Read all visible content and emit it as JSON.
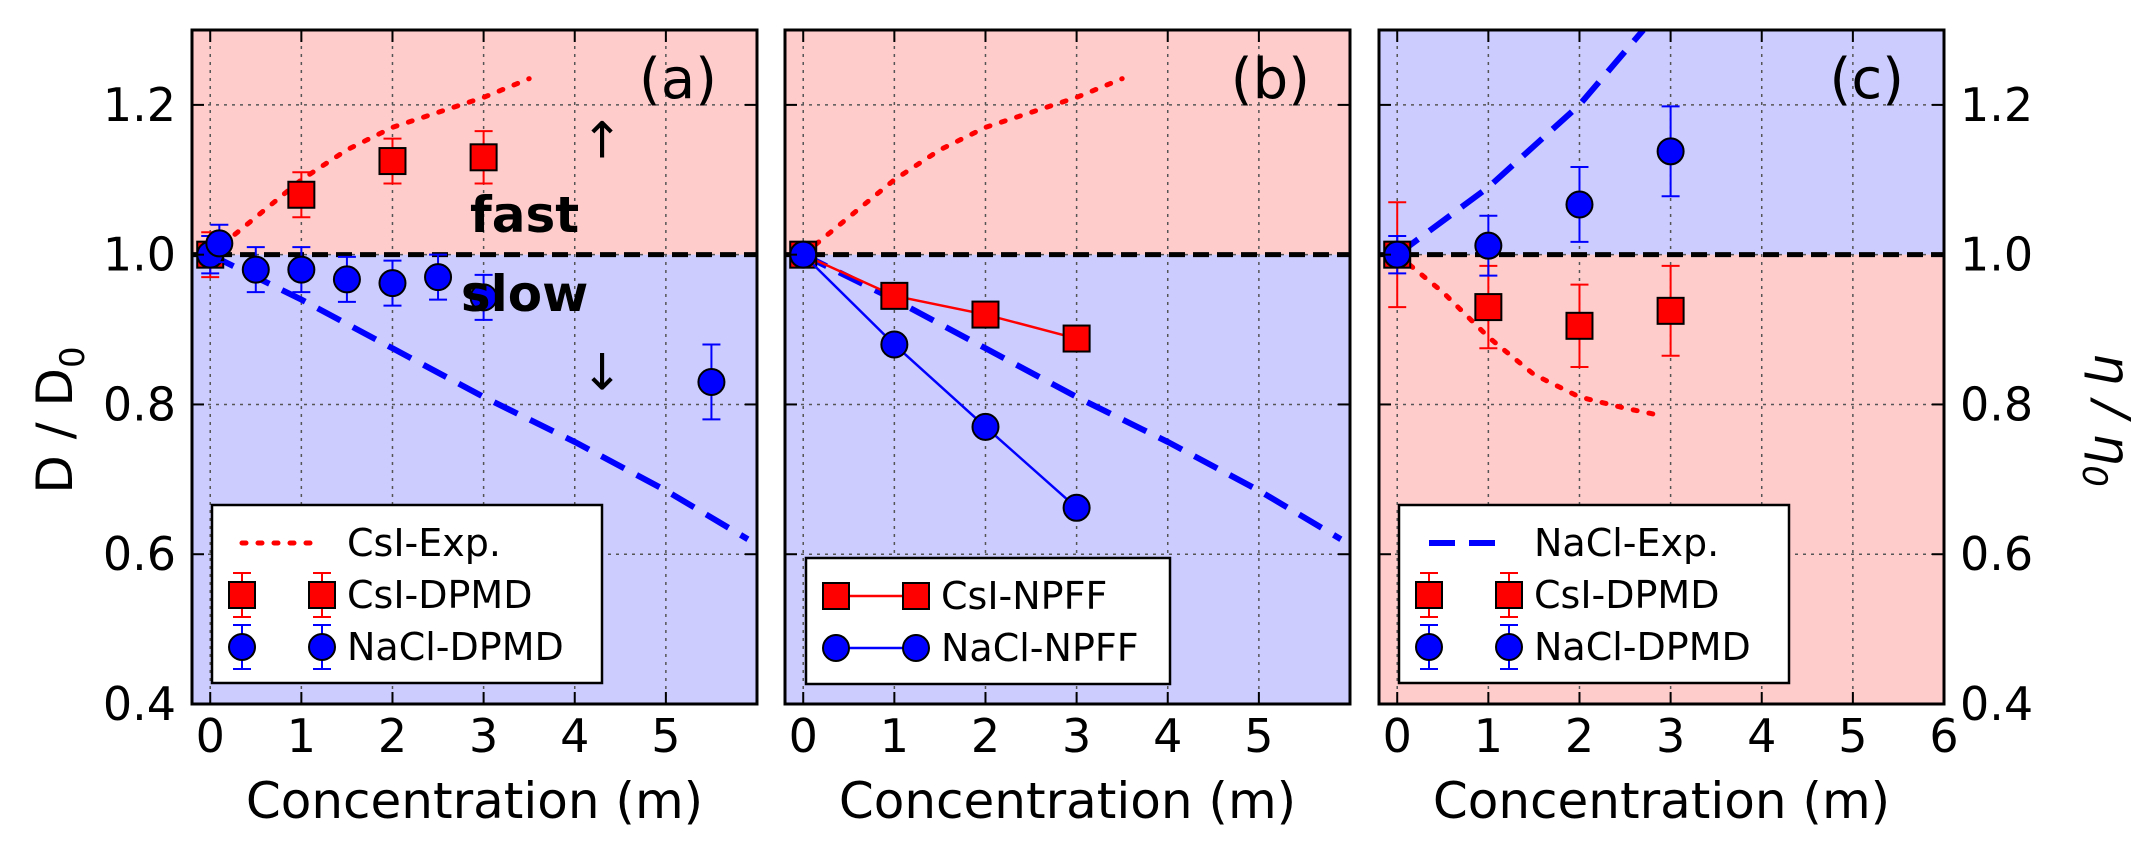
{
  "figure": {
    "ylabel_left": "D / D",
    "ylabel_left_sub": "0",
    "ylabel_right": "η / η",
    "ylabel_right_sub": "0",
    "annot_fast": "fast",
    "annot_slow": "slow",
    "arrow_up": "↑",
    "arrow_down": "↓"
  },
  "colors": {
    "red_bg": "#ffcccc",
    "blue_bg": "#ccccff",
    "red": "#ff0000",
    "blue": "#0000ff",
    "dashed": "#000000"
  },
  "chart_data": [
    {
      "type": "scatter",
      "panel": "(a)",
      "xlabel": "Concentration (m)",
      "xlim": [
        -0.2,
        6.0
      ],
      "ylim": [
        0.4,
        1.3
      ],
      "xticks": [
        0,
        1,
        2,
        3,
        4,
        5
      ],
      "xtick_labels": [
        "0",
        "1",
        "2",
        "3",
        "4",
        "5"
      ],
      "yticks": [
        0.4,
        0.6,
        0.8,
        1.0,
        1.2
      ],
      "ytick_labels": [
        "0.4",
        "0.6",
        "0.8",
        "1.0",
        "1.2"
      ],
      "reference_line": 1.0,
      "upper_region": "red",
      "legend": [
        "CsI-Exp.",
        "CsI-DPMD",
        "NaCl-DPMD"
      ],
      "series": [
        {
          "name": "CsI-Exp.",
          "style": "dotted",
          "color": "red",
          "x": [
            0,
            0.5,
            1,
            1.5,
            2,
            2.5,
            3,
            3.5
          ],
          "y": [
            1.0,
            1.05,
            1.1,
            1.14,
            1.17,
            1.19,
            1.21,
            1.235
          ]
        },
        {
          "name": "NaCl-Exp.",
          "style": "dashed",
          "color": "blue",
          "x": [
            0,
            1,
            2,
            3,
            4,
            5,
            5.9
          ],
          "y": [
            1.0,
            0.94,
            0.875,
            0.81,
            0.75,
            0.685,
            0.62
          ]
        },
        {
          "name": "CsI-DPMD",
          "marker": "square",
          "color": "red",
          "x": [
            0,
            1,
            2,
            3
          ],
          "y": [
            1.0,
            1.08,
            1.125,
            1.13
          ],
          "err": [
            0.03,
            0.03,
            0.03,
            0.035
          ]
        },
        {
          "name": "NaCl-DPMD",
          "marker": "circle",
          "color": "blue",
          "x": [
            0,
            0.1,
            0.5,
            1,
            1.5,
            2,
            2.5,
            3,
            5.5
          ],
          "y": [
            1.0,
            1.015,
            0.98,
            0.98,
            0.967,
            0.962,
            0.97,
            0.943,
            0.83
          ],
          "err": [
            0.025,
            0.025,
            0.03,
            0.03,
            0.03,
            0.03,
            0.03,
            0.03,
            0.05
          ]
        }
      ]
    },
    {
      "type": "line",
      "panel": "(b)",
      "xlabel": "Concentration (m)",
      "xlim": [
        -0.2,
        6.0
      ],
      "ylim": [
        0.4,
        1.3
      ],
      "xticks": [
        0,
        1,
        2,
        3,
        4,
        5
      ],
      "xtick_labels": [
        "0",
        "1",
        "2",
        "3",
        "4",
        "5"
      ],
      "reference_line": 1.0,
      "upper_region": "red",
      "legend": [
        "CsI-NPFF",
        "NaCl-NPFF"
      ],
      "series": [
        {
          "name": "CsI-Exp.",
          "style": "dotted",
          "color": "red",
          "x": [
            0,
            0.5,
            1,
            1.5,
            2,
            2.5,
            3,
            3.5
          ],
          "y": [
            1.0,
            1.05,
            1.1,
            1.14,
            1.17,
            1.19,
            1.21,
            1.235
          ]
        },
        {
          "name": "NaCl-Exp.",
          "style": "dashed",
          "color": "blue",
          "x": [
            0,
            1,
            2,
            3,
            4,
            5,
            5.9
          ],
          "y": [
            1.0,
            0.94,
            0.875,
            0.81,
            0.75,
            0.685,
            0.62
          ]
        },
        {
          "name": "CsI-NPFF",
          "marker": "square",
          "color": "red",
          "x": [
            0,
            1,
            2,
            3
          ],
          "y": [
            1.0,
            0.945,
            0.92,
            0.888
          ]
        },
        {
          "name": "NaCl-NPFF",
          "marker": "circle",
          "color": "blue",
          "x": [
            0,
            1,
            2,
            3
          ],
          "y": [
            1.0,
            0.88,
            0.77,
            0.662
          ]
        }
      ]
    },
    {
      "type": "scatter",
      "panel": "(c)",
      "xlabel": "Concentration (m)",
      "xlim": [
        -0.2,
        6.0
      ],
      "ylim": [
        0.4,
        1.3
      ],
      "xticks": [
        0,
        1,
        2,
        3,
        4,
        5,
        6
      ],
      "xtick_labels": [
        "0",
        "1",
        "2",
        "3",
        "4",
        "5",
        "6"
      ],
      "yticks": [
        0.4,
        0.6,
        0.8,
        1.0,
        1.2
      ],
      "ytick_labels": [
        "0.4",
        "0.6",
        "0.8",
        "1.0",
        "1.2"
      ],
      "reference_line": 1.0,
      "upper_region": "blue",
      "legend": [
        "NaCl-Exp.",
        "CsI-DPMD",
        "NaCl-DPMD"
      ],
      "series": [
        {
          "name": "NaCl-Exp.",
          "style": "dashed",
          "color": "blue",
          "x": [
            0,
            1,
            2,
            2.7
          ],
          "y": [
            1.0,
            1.09,
            1.2,
            1.3
          ]
        },
        {
          "name": "CsI-Exp.",
          "style": "dotted",
          "color": "red",
          "x": [
            0,
            0.5,
            1,
            1.5,
            2,
            2.5,
            2.9
          ],
          "y": [
            1.0,
            0.95,
            0.89,
            0.84,
            0.81,
            0.795,
            0.785
          ]
        },
        {
          "name": "CsI-DPMD",
          "marker": "square",
          "color": "red",
          "x": [
            0,
            1,
            2,
            3
          ],
          "y": [
            1.0,
            0.93,
            0.905,
            0.925
          ],
          "err": [
            0.07,
            0.055,
            0.055,
            0.06
          ]
        },
        {
          "name": "NaCl-DPMD",
          "marker": "circle",
          "color": "blue",
          "x": [
            0,
            1,
            2,
            3
          ],
          "y": [
            1.0,
            1.012,
            1.067,
            1.138
          ],
          "err": [
            0.025,
            0.04,
            0.05,
            0.06
          ]
        }
      ]
    }
  ]
}
